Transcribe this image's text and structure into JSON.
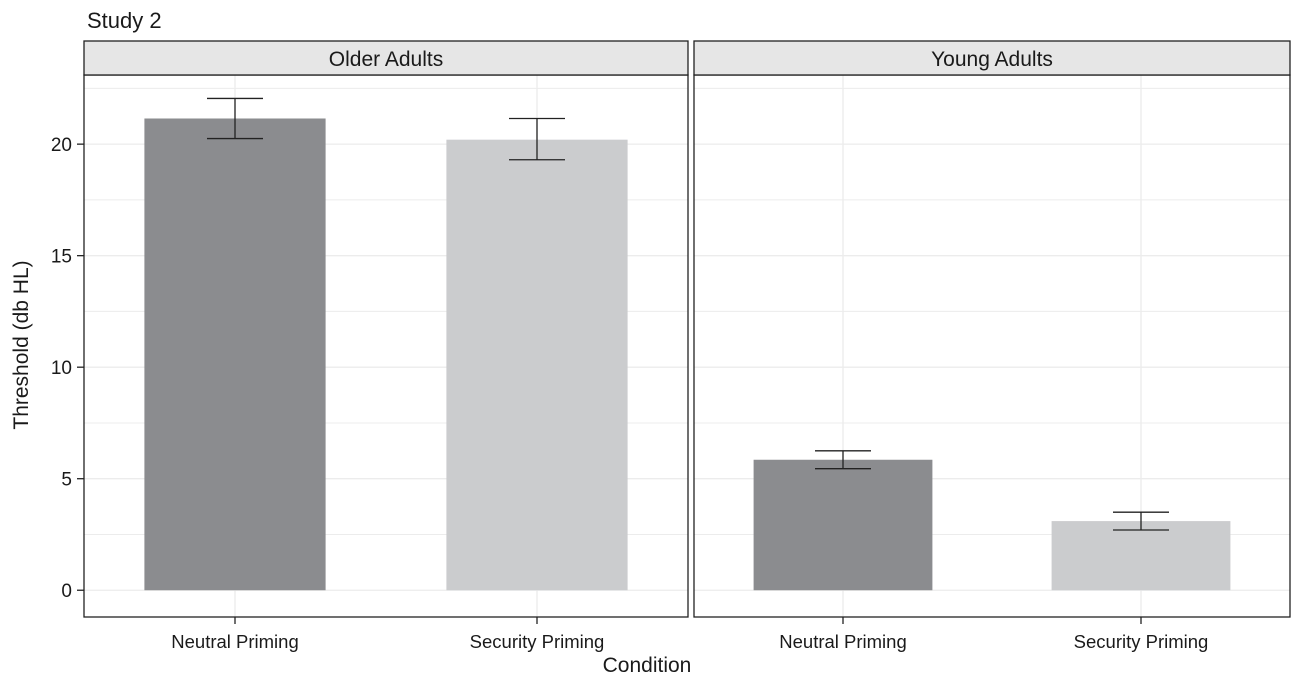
{
  "colors": {
    "neutral": "#8b8c8f",
    "security": "#cbccce",
    "strip": "#e6e6e6",
    "grid": "#ececec",
    "axis": "#222222"
  },
  "chart_data": {
    "type": "bar",
    "title": "Study 2",
    "xlabel": "Condition",
    "ylabel": "Threshold (db HL)",
    "ylim": [
      -1.2,
      23.1
    ],
    "yticks": [
      0,
      5,
      10,
      15,
      20
    ],
    "categories": [
      "Neutral Priming",
      "Security Priming"
    ],
    "grid": true,
    "legend": "none",
    "panels": [
      {
        "name": "Older Adults",
        "values": [
          21.15,
          20.2
        ],
        "errors": [
          [
            20.25,
            22.05
          ],
          [
            19.3,
            21.15
          ]
        ]
      },
      {
        "name": "Young Adults",
        "values": [
          5.85,
          3.1
        ],
        "errors": [
          [
            5.45,
            6.25
          ],
          [
            2.7,
            3.5
          ]
        ]
      }
    ]
  }
}
